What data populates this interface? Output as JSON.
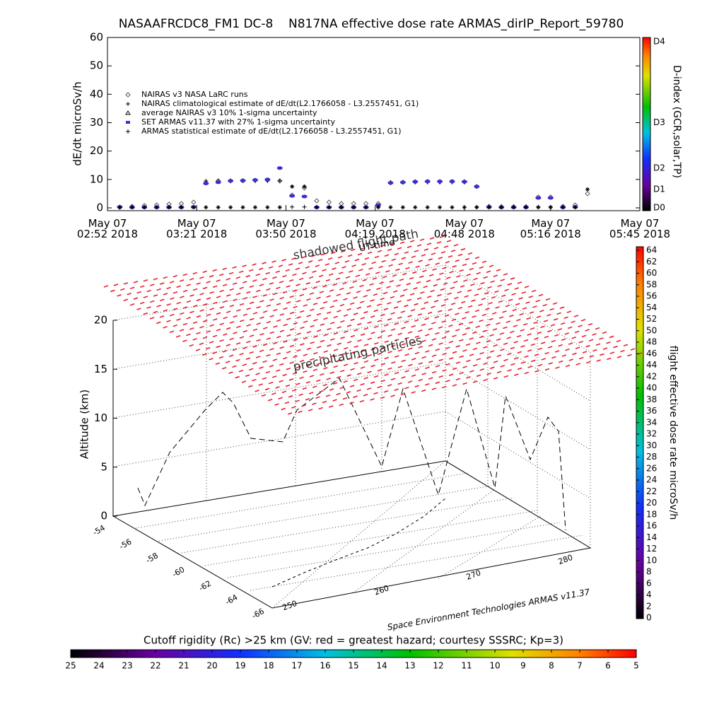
{
  "chart_data": [
    {
      "type": "scatter",
      "title": "NASAAFRCDC8_FM1 DC-8    N817NA effective dose rate ARMAS_dirIP_Report_59780",
      "y_label": "dE/dt microSv/h",
      "x": [
        "2018-05-07T02:56",
        "2018-05-07T03:00",
        "2018-05-07T03:04",
        "2018-05-07T03:08",
        "2018-05-07T03:12",
        "2018-05-07T03:16",
        "2018-05-07T03:20",
        "2018-05-07T03:24",
        "2018-05-07T03:28",
        "2018-05-07T03:32",
        "2018-05-07T03:36",
        "2018-05-07T03:40",
        "2018-05-07T03:44",
        "2018-05-07T03:48",
        "2018-05-07T03:52",
        "2018-05-07T03:56",
        "2018-05-07T04:00",
        "2018-05-07T04:04",
        "2018-05-07T04:08",
        "2018-05-07T04:12",
        "2018-05-07T04:16",
        "2018-05-07T04:20",
        "2018-05-07T04:24",
        "2018-05-07T04:28",
        "2018-05-07T04:32",
        "2018-05-07T04:36",
        "2018-05-07T04:40",
        "2018-05-07T04:44",
        "2018-05-07T04:48",
        "2018-05-07T04:52",
        "2018-05-07T04:56",
        "2018-05-07T05:00",
        "2018-05-07T05:04",
        "2018-05-07T05:08",
        "2018-05-07T05:12",
        "2018-05-07T05:16",
        "2018-05-07T05:20",
        "2018-05-07T05:24",
        "2018-05-07T05:28"
      ],
      "series": [
        {
          "name": "NAIRAS v3 NASA LaRC runs",
          "marker": "diamond",
          "color": "#555555",
          "values": [
            0.2,
            0.5,
            0.8,
            1,
            1.3,
            1.5,
            2,
            8.8,
            9.5,
            9.5,
            9.6,
            9.7,
            9.8,
            9.5,
            4.5,
            7,
            2.5,
            2,
            1.5,
            1.5,
            1.5,
            1.5,
            8.8,
            9,
            9.2,
            9.3,
            9.2,
            9.3,
            9.2,
            7.5,
            0.5,
            0.4,
            0.4,
            0.4,
            3.8,
            3.8,
            0.5,
            1,
            5
          ]
        },
        {
          "name": "NAIRAS climatological estimate of dE/dt(L2.1766058 - L3.2557451, G1)",
          "marker": "plus",
          "color": "#000000",
          "values": [
            0.3,
            0.3,
            0.3,
            0.3,
            0.3,
            0.3,
            0.3,
            9.5,
            9.5,
            9.5,
            9.5,
            9.5,
            9.5,
            9.5,
            0.3,
            0.3,
            0.3,
            0.3,
            0.3,
            0.3,
            0.3,
            0.3,
            9,
            9,
            9,
            9,
            9,
            9,
            9,
            0.3,
            0.3,
            0.3,
            0.3,
            0.3,
            0.3,
            0.3,
            0.3,
            0.3,
            null
          ]
        },
        {
          "name": "SET ARMAS v11.37 with 27% 1-sigma uncertainty",
          "marker": "dot",
          "color": "#3a2fd0",
          "values": [
            0.3,
            0.2,
            0.2,
            0.2,
            0.2,
            0.2,
            0.3,
            8.6,
            9,
            9.5,
            9.6,
            9.8,
            10,
            14,
            4.2,
            4,
            0.2,
            0.2,
            0.2,
            0.2,
            0.2,
            1,
            8.8,
            9,
            9.2,
            9.3,
            9.3,
            9.3,
            9.2,
            7.5,
            0.3,
            0.2,
            0.2,
            0.2,
            3.5,
            3.5,
            0.2,
            0.3,
            null
          ]
        },
        {
          "name": "ARMAS statistical estimate of dE/dt(L2.1766058 - L3.2557451, G1)",
          "marker": "star",
          "color": "#000000",
          "values": [
            0.2,
            0.2,
            0.2,
            0.2,
            0.2,
            0.2,
            0.2,
            0.2,
            0.2,
            0.2,
            0.2,
            0.2,
            0.2,
            0.2,
            7.5,
            7.5,
            0.2,
            0.2,
            0.2,
            0.2,
            0.2,
            0.2,
            0.2,
            0.2,
            0.2,
            0.2,
            0.2,
            0.2,
            0.2,
            0.2,
            0.2,
            0.2,
            0.2,
            0.2,
            0.2,
            0.2,
            0.2,
            0.2,
            6.5
          ]
        }
      ],
      "legend_extra": "average NAIRAS v3 10% 1-sigma uncertainty",
      "xlim": [
        "2018-05-07T02:52",
        "2018-05-07T05:45"
      ],
      "xticks": [
        {
          "value": "2018-05-07T02:52",
          "label": "May 07\n02:52 2018"
        },
        {
          "value": "2018-05-07T03:21",
          "label": "May 07\n03:21 2018"
        },
        {
          "value": "2018-05-07T03:50",
          "label": "May 07\n03:50 2018"
        },
        {
          "value": "2018-05-07T04:19",
          "label": "May 07\n04:19 2018"
        },
        {
          "value": "2018-05-07T04:48",
          "label": "May 07\n04:48 2018"
        },
        {
          "value": "2018-05-07T05:16",
          "label": "May 07\n05:16 2018"
        },
        {
          "value": "2018-05-07T05:45",
          "label": "May 07\n05:45 2018"
        }
      ],
      "ylim": [
        0,
        60
      ],
      "yticks": [
        0,
        10,
        20,
        30,
        40,
        50,
        60
      ],
      "colorbar": {
        "label": "D-index (GCR,solar,TP)",
        "ticks": [
          {
            "value": 0,
            "label": "D0"
          },
          {
            "value": 6.5,
            "label": "D1"
          },
          {
            "value": 14,
            "label": "D2"
          },
          {
            "value": 30,
            "label": "D3"
          },
          {
            "value": 60,
            "label": "D4"
          }
        ]
      }
    },
    {
      "type": "surface3d",
      "z_label": "Altitude (km)",
      "zlim": [
        0,
        20
      ],
      "zticks": [
        0,
        5,
        10,
        15,
        20
      ],
      "lat_ticks": [
        -54,
        -56,
        -58,
        -60,
        -62,
        -64,
        -66
      ],
      "lon_ticks": [
        250,
        260,
        270,
        280
      ],
      "annotations": [
        "shadowed flight path",
        "UT time",
        "precipitating particles"
      ],
      "credit": "Space Environment Technologies ARMAS v11.37",
      "colorbar": {
        "label": "flight effective dose rate microSv/h",
        "lim": [
          0,
          64
        ],
        "ticks": [
          0,
          2,
          4,
          6,
          8,
          10,
          12,
          14,
          16,
          18,
          20,
          22,
          24,
          26,
          28,
          30,
          32,
          34,
          36,
          38,
          40,
          42,
          44,
          46,
          48,
          50,
          52,
          54,
          56,
          58,
          60,
          62,
          64
        ]
      },
      "cutoff_bar": {
        "label": "Cutoff rigidity (Rc) >25 km (GV: red = greatest hazard; courtesy SSSRC; Kp=3)",
        "lim": [
          25,
          5
        ],
        "ticks": [
          25,
          24,
          23,
          22,
          21,
          20,
          19,
          18,
          17,
          16,
          15,
          14,
          13,
          12,
          11,
          10,
          9,
          8,
          7,
          6,
          5
        ]
      }
    }
  ]
}
